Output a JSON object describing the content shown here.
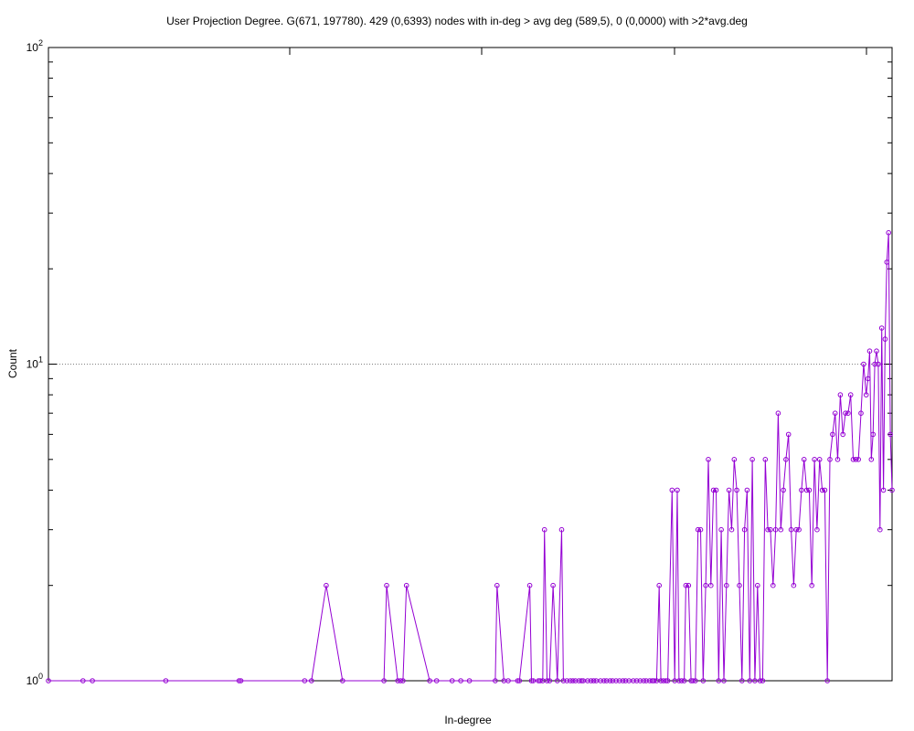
{
  "chart_data": {
    "type": "line",
    "title": "User Projection Degree. G(671, 197780). 429 (0,6393) nodes with in-deg > avg deg (589,5), 0 (0,0000) with >2*avg.deg",
    "xlabel": "In-degree",
    "ylabel": "Count",
    "x_scale": "linear",
    "y_scale": "log",
    "xlim": [
      12,
      990
    ],
    "ylim": [
      1,
      100
    ],
    "y_ticks": [
      {
        "value": 1,
        "base": "10",
        "exp": "0"
      },
      {
        "value": 10,
        "base": "10",
        "exp": "1"
      },
      {
        "value": 100,
        "base": "10",
        "exp": "2"
      }
    ],
    "grid": "dotted horizontal line at y=10",
    "legend": "none",
    "series_color": "#9400d3",
    "marker": "hollow-circle",
    "x": [
      12,
      52,
      63,
      148,
      233,
      235,
      309,
      317,
      334,
      353,
      401,
      404,
      417,
      420,
      423,
      427,
      454,
      462,
      480,
      490,
      500,
      530,
      532,
      540,
      545,
      556,
      558,
      570,
      572,
      574,
      580,
      582,
      585,
      587,
      590,
      593,
      597,
      602,
      607,
      609,
      613,
      617,
      620,
      623,
      627,
      630,
      632,
      637,
      641,
      644,
      647,
      652,
      656,
      659,
      663,
      666,
      670,
      674,
      678,
      681,
      685,
      690,
      694,
      698,
      702,
      705,
      709,
      712,
      714,
      717,
      720,
      722,
      725,
      728,
      730,
      735,
      738,
      741,
      743,
      746,
      749,
      751,
      754,
      757,
      759,
      762,
      765,
      768,
      771,
      774,
      777,
      780,
      783,
      786,
      789,
      792,
      795,
      798,
      801,
      804,
      807,
      810,
      813,
      816,
      819,
      822,
      825,
      828,
      831,
      834,
      837,
      840,
      843,
      846,
      849,
      852,
      855,
      858,
      861,
      864,
      867,
      870,
      873,
      876,
      879,
      882,
      885,
      888,
      891,
      894,
      897,
      900,
      903,
      906,
      909,
      912,
      915,
      918,
      921,
      924,
      927,
      930,
      933,
      936,
      939,
      942,
      945,
      948,
      951,
      954,
      957,
      960,
      962,
      964,
      966,
      968,
      970,
      972,
      974,
      976,
      978,
      980,
      982,
      984,
      986,
      988,
      990
    ],
    "y": [
      1,
      1,
      1,
      1,
      1,
      1,
      1,
      1,
      2,
      1,
      1,
      2,
      1,
      1,
      1,
      2,
      1,
      1,
      1,
      1,
      1,
      1,
      2,
      1,
      1,
      1,
      1,
      2,
      1,
      1,
      1,
      1,
      1,
      3,
      1,
      1,
      2,
      1,
      3,
      1,
      1,
      1,
      1,
      1,
      1,
      1,
      1,
      1,
      1,
      1,
      1,
      1,
      1,
      1,
      1,
      1,
      1,
      1,
      1,
      1,
      1,
      1,
      1,
      1,
      1,
      1,
      1,
      1,
      1,
      1,
      2,
      1,
      1,
      1,
      1,
      4,
      1,
      4,
      1,
      1,
      1,
      2,
      2,
      1,
      1,
      1,
      3,
      3,
      1,
      2,
      5,
      2,
      4,
      4,
      1,
      3,
      1,
      2,
      4,
      3,
      5,
      4,
      2,
      1,
      3,
      4,
      1,
      5,
      1,
      2,
      1,
      1,
      5,
      3,
      3,
      2,
      3,
      7,
      3,
      4,
      5,
      6,
      3,
      2,
      3,
      3,
      4,
      5,
      4,
      4,
      2,
      5,
      3,
      5,
      4,
      4,
      1,
      5,
      6,
      7,
      5,
      8,
      6,
      7,
      7,
      8,
      5,
      5,
      5,
      7,
      10,
      8,
      9,
      11,
      5,
      6,
      10,
      11,
      10,
      3,
      13,
      4,
      12,
      21,
      26,
      6,
      4
    ]
  }
}
